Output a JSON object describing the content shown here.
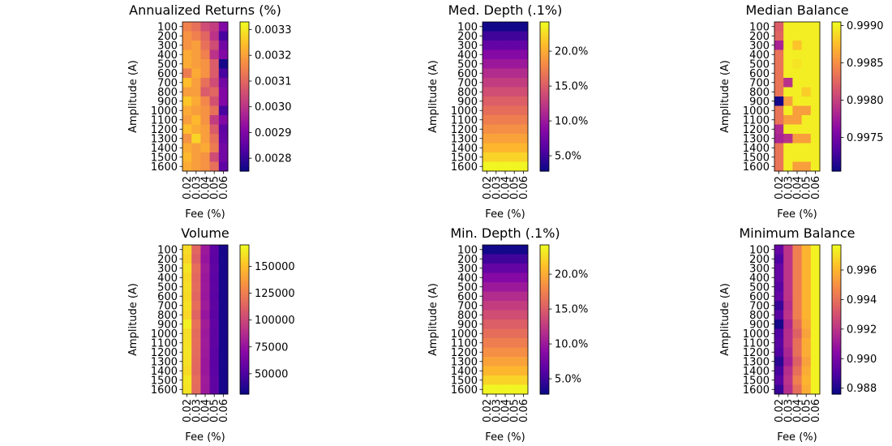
{
  "chart_data": [
    {
      "type": "heatmap",
      "title": "Annualized Returns (%)",
      "xlabel": "Fee (%)",
      "ylabel": "Amplitude (A)",
      "x_categories": [
        "0.02",
        "0.03",
        "0.04",
        "0.05",
        "0.06"
      ],
      "y_categories": [
        "100",
        "200",
        "300",
        "400",
        "500",
        "600",
        "700",
        "800",
        "900",
        "1000",
        "1100",
        "1200",
        "1300",
        "1400",
        "1500",
        "1600"
      ],
      "colormap": "plasma",
      "vmin": 0.00275,
      "vmax": 0.00333,
      "colorbar_ticks": [
        "0.0028",
        "0.0029",
        "0.0030",
        "0.0031",
        "0.0032",
        "0.0033"
      ],
      "colorbar_tick_values": [
        0.0028,
        0.0029,
        0.003,
        0.0031,
        0.0032,
        0.0033
      ],
      "values": [
        [
          0.00315,
          0.00312,
          0.00305,
          0.00302,
          0.0029
        ],
        [
          0.00318,
          0.00315,
          0.0031,
          0.003,
          0.00282
        ],
        [
          0.00318,
          0.0032,
          0.00312,
          0.00305,
          0.00288
        ],
        [
          0.00322,
          0.0032,
          0.00315,
          0.003,
          0.0029
        ],
        [
          0.00322,
          0.0032,
          0.00318,
          0.00308,
          0.00276
        ],
        [
          0.00314,
          0.00322,
          0.00318,
          0.00308,
          0.00282
        ],
        [
          0.00325,
          0.0032,
          0.00312,
          0.00305,
          0.00288
        ],
        [
          0.0032,
          0.0032,
          0.00308,
          0.0031,
          0.0029
        ],
        [
          0.00326,
          0.00322,
          0.00316,
          0.00306,
          0.0029
        ],
        [
          0.00322,
          0.0032,
          0.00318,
          0.00312,
          0.00282
        ],
        [
          0.0032,
          0.00324,
          0.00318,
          0.00302,
          0.0029
        ],
        [
          0.00325,
          0.00322,
          0.0032,
          0.00308,
          0.00285
        ],
        [
          0.00318,
          0.00328,
          0.0032,
          0.00312,
          0.00286
        ],
        [
          0.00322,
          0.0032,
          0.00322,
          0.00314,
          0.00288
        ],
        [
          0.00324,
          0.0032,
          0.00318,
          0.00305,
          0.00288
        ],
        [
          0.00322,
          0.0032,
          0.00318,
          0.00312,
          0.00285
        ]
      ]
    },
    {
      "type": "heatmap",
      "title": "Med. Depth (.1%)",
      "xlabel": "Fee (%)",
      "ylabel": "Amplitude (A)",
      "x_categories": [
        "0.02",
        "0.03",
        "0.04",
        "0.05",
        "0.06"
      ],
      "y_categories": [
        "100",
        "200",
        "300",
        "400",
        "500",
        "600",
        "700",
        "800",
        "900",
        "1000",
        "1100",
        "1200",
        "1300",
        "1400",
        "1500",
        "1600"
      ],
      "colormap": "plasma",
      "vmin": 2.8,
      "vmax": 24.2,
      "colorbar_ticks": [
        "5.0%",
        "10.0%",
        "15.0%",
        "20.0%"
      ],
      "colorbar_tick_values": [
        5,
        10,
        15,
        20
      ],
      "values": [
        [
          3.0,
          3.0,
          3.0,
          3.0,
          3.0
        ],
        [
          5.0,
          5.0,
          5.0,
          5.0,
          5.0
        ],
        [
          6.8,
          6.8,
          6.8,
          6.8,
          6.8
        ],
        [
          8.5,
          8.5,
          8.5,
          8.5,
          8.5
        ],
        [
          10.0,
          10.0,
          10.0,
          10.0,
          10.0
        ],
        [
          11.5,
          11.5,
          11.5,
          11.5,
          11.5
        ],
        [
          12.8,
          12.8,
          12.8,
          12.8,
          12.8
        ],
        [
          14.0,
          14.0,
          14.0,
          14.0,
          14.0
        ],
        [
          15.2,
          15.2,
          15.2,
          15.2,
          15.2
        ],
        [
          16.3,
          16.3,
          16.3,
          16.3,
          16.3
        ],
        [
          17.4,
          17.4,
          17.4,
          17.4,
          17.4
        ],
        [
          18.5,
          18.5,
          18.5,
          18.5,
          18.5
        ],
        [
          19.6,
          19.6,
          19.6,
          19.6,
          19.6
        ],
        [
          20.8,
          20.8,
          20.8,
          20.8,
          20.8
        ],
        [
          22.3,
          22.3,
          22.3,
          22.3,
          22.3
        ],
        [
          24.0,
          24.0,
          24.0,
          24.0,
          24.0
        ]
      ]
    },
    {
      "type": "heatmap",
      "title": "Median Balance",
      "xlabel": "Fee (%)",
      "ylabel": "Amplitude (A)",
      "x_categories": [
        "0.02",
        "0.03",
        "0.04",
        "0.05",
        "0.06"
      ],
      "y_categories": [
        "100",
        "200",
        "300",
        "400",
        "500",
        "600",
        "700",
        "800",
        "900",
        "1000",
        "1100",
        "1200",
        "1300",
        "1400",
        "1500",
        "1600"
      ],
      "colormap": "plasma",
      "vmin": 0.99705,
      "vmax": 0.99905,
      "colorbar_ticks": [
        "0.9975",
        "0.9980",
        "0.9985",
        "0.9990"
      ],
      "colorbar_tick_values": [
        0.9975,
        0.998,
        0.9985,
        0.999
      ],
      "values": [
        [
          0.9982,
          0.999,
          0.999,
          0.999,
          0.999
        ],
        [
          0.99825,
          0.999,
          0.999,
          0.999,
          0.999
        ],
        [
          0.9978,
          0.999,
          0.9988,
          0.999,
          0.999
        ],
        [
          0.99835,
          0.999,
          0.999,
          0.999,
          0.999
        ],
        [
          0.99835,
          0.999,
          0.99895,
          0.999,
          0.999
        ],
        [
          0.99835,
          0.999,
          0.999,
          0.999,
          0.999
        ],
        [
          0.99835,
          0.9979,
          0.999,
          0.999,
          0.999
        ],
        [
          0.99835,
          0.999,
          0.999,
          0.99885,
          0.999
        ],
        [
          0.99708,
          0.9986,
          0.999,
          0.999,
          0.999
        ],
        [
          0.99835,
          0.999,
          0.9986,
          0.9986,
          0.999
        ],
        [
          0.99835,
          0.9986,
          0.9986,
          0.999,
          0.999
        ],
        [
          0.99785,
          0.999,
          0.999,
          0.999,
          0.999
        ],
        [
          0.9978,
          0.9979,
          0.9986,
          0.9986,
          0.999
        ],
        [
          0.99835,
          0.999,
          0.999,
          0.999,
          0.999
        ],
        [
          0.99835,
          0.999,
          0.999,
          0.999,
          0.999
        ],
        [
          0.99835,
          0.999,
          0.9986,
          0.9986,
          0.999
        ]
      ]
    },
    {
      "type": "heatmap",
      "title": "Volume",
      "xlabel": "Fee (%)",
      "ylabel": "Amplitude (A)",
      "x_categories": [
        "0.02",
        "0.03",
        "0.04",
        "0.05",
        "0.06"
      ],
      "y_categories": [
        "100",
        "200",
        "300",
        "400",
        "500",
        "600",
        "700",
        "800",
        "900",
        "1000",
        "1100",
        "1200",
        "1300",
        "1400",
        "1500",
        "1600"
      ],
      "colormap": "plasma",
      "vmin": 31000,
      "vmax": 170000,
      "colorbar_ticks": [
        "50000",
        "75000",
        "100000",
        "125000",
        "150000"
      ],
      "colorbar_tick_values": [
        50000,
        75000,
        100000,
        125000,
        150000
      ],
      "values": [
        [
          160000,
          115000,
          78000,
          55000,
          34000
        ],
        [
          158000,
          112000,
          76000,
          54000,
          34000
        ],
        [
          163000,
          118000,
          79000,
          55000,
          34000
        ],
        [
          160000,
          116000,
          77000,
          54000,
          34000
        ],
        [
          161000,
          117000,
          78000,
          55000,
          34000
        ],
        [
          160000,
          115000,
          77000,
          54000,
          34000
        ],
        [
          162000,
          118000,
          79000,
          55000,
          34000
        ],
        [
          159000,
          114000,
          76000,
          54000,
          34000
        ],
        [
          167000,
          120000,
          80000,
          56000,
          34000
        ],
        [
          161000,
          117000,
          78000,
          55000,
          34000
        ],
        [
          162000,
          118000,
          79000,
          55000,
          34000
        ],
        [
          163000,
          117000,
          78000,
          54000,
          34000
        ],
        [
          162000,
          116000,
          77000,
          54000,
          34000
        ],
        [
          160000,
          115000,
          77000,
          54000,
          34000
        ],
        [
          164000,
          118000,
          79000,
          55000,
          34000
        ],
        [
          163000,
          117000,
          78000,
          55000,
          34000
        ]
      ]
    },
    {
      "type": "heatmap",
      "title": "Min. Depth (.1%)",
      "xlabel": "Fee (%)",
      "ylabel": "Amplitude (A)",
      "x_categories": [
        "0.02",
        "0.03",
        "0.04",
        "0.05",
        "0.06"
      ],
      "y_categories": [
        "100",
        "200",
        "300",
        "400",
        "500",
        "600",
        "700",
        "800",
        "900",
        "1000",
        "1100",
        "1200",
        "1300",
        "1400",
        "1500",
        "1600"
      ],
      "colormap": "plasma",
      "vmin": 2.8,
      "vmax": 24.2,
      "colorbar_ticks": [
        "5.0%",
        "10.0%",
        "15.0%",
        "20.0%"
      ],
      "colorbar_tick_values": [
        5,
        10,
        15,
        20
      ],
      "values": [
        [
          3.0,
          3.0,
          3.0,
          3.0,
          3.0
        ],
        [
          5.0,
          5.0,
          5.0,
          5.0,
          5.0
        ],
        [
          6.8,
          6.8,
          6.8,
          6.8,
          6.8
        ],
        [
          8.5,
          8.5,
          8.5,
          8.5,
          8.5
        ],
        [
          10.0,
          10.0,
          10.0,
          10.0,
          10.0
        ],
        [
          11.5,
          11.5,
          11.5,
          11.5,
          11.5
        ],
        [
          12.8,
          12.8,
          12.8,
          12.8,
          12.8
        ],
        [
          14.0,
          14.0,
          14.0,
          14.0,
          14.0
        ],
        [
          15.2,
          15.2,
          15.2,
          15.2,
          15.2
        ],
        [
          16.3,
          16.3,
          16.3,
          16.3,
          16.3
        ],
        [
          17.4,
          17.4,
          17.4,
          17.4,
          17.4
        ],
        [
          18.5,
          18.5,
          18.5,
          18.5,
          18.5
        ],
        [
          19.6,
          19.6,
          19.6,
          19.6,
          19.6
        ],
        [
          20.8,
          20.8,
          20.8,
          20.8,
          20.8
        ],
        [
          22.3,
          22.3,
          22.3,
          22.3,
          22.3
        ],
        [
          24.0,
          24.0,
          24.0,
          24.0,
          24.0
        ]
      ]
    },
    {
      "type": "heatmap",
      "title": "Minimum Balance",
      "xlabel": "Fee (%)",
      "ylabel": "Amplitude (A)",
      "x_categories": [
        "0.02",
        "0.03",
        "0.04",
        "0.05",
        "0.06"
      ],
      "y_categories": [
        "100",
        "200",
        "300",
        "400",
        "500",
        "600",
        "700",
        "800",
        "900",
        "1000",
        "1100",
        "1200",
        "1300",
        "1400",
        "1500",
        "1600"
      ],
      "colormap": "plasma",
      "vmin": 0.9876,
      "vmax": 0.9977,
      "colorbar_ticks": [
        "0.988",
        "0.990",
        "0.992",
        "0.994",
        "0.996"
      ],
      "colorbar_tick_values": [
        0.988,
        0.99,
        0.992,
        0.994,
        0.996
      ],
      "values": [
        [
          0.9895,
          0.992,
          0.9945,
          0.996,
          0.9975
        ],
        [
          0.989,
          0.992,
          0.9945,
          0.996,
          0.9975
        ],
        [
          0.9895,
          0.992,
          0.9945,
          0.996,
          0.9975
        ],
        [
          0.9895,
          0.992,
          0.9945,
          0.996,
          0.9975
        ],
        [
          0.9892,
          0.992,
          0.9945,
          0.996,
          0.9975
        ],
        [
          0.9895,
          0.992,
          0.9945,
          0.996,
          0.9975
        ],
        [
          0.9885,
          0.9918,
          0.9945,
          0.996,
          0.9975
        ],
        [
          0.9892,
          0.992,
          0.9945,
          0.996,
          0.9975
        ],
        [
          0.9878,
          0.9915,
          0.994,
          0.9958,
          0.9975
        ],
        [
          0.989,
          0.9918,
          0.9935,
          0.9955,
          0.9975
        ],
        [
          0.9892,
          0.9918,
          0.994,
          0.9958,
          0.9975
        ],
        [
          0.989,
          0.9915,
          0.994,
          0.9958,
          0.9975
        ],
        [
          0.9882,
          0.9912,
          0.9935,
          0.9955,
          0.9975
        ],
        [
          0.9888,
          0.9918,
          0.994,
          0.9958,
          0.9975
        ],
        [
          0.9892,
          0.992,
          0.9945,
          0.996,
          0.9975
        ],
        [
          0.9885,
          0.9918,
          0.994,
          0.9958,
          0.9975
        ]
      ]
    }
  ]
}
